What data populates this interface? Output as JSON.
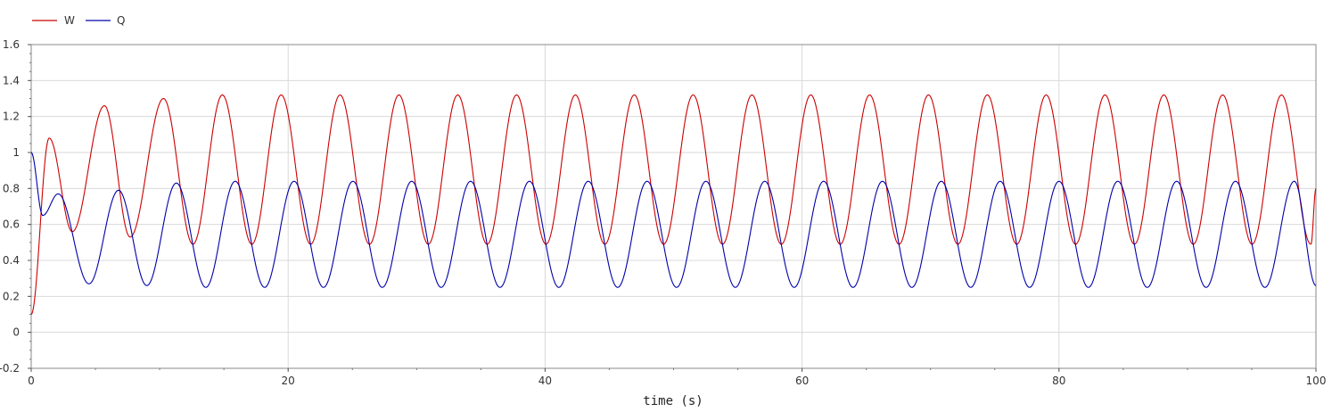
{
  "chart_data": {
    "type": "line",
    "title": "",
    "xlabel": "time (s)",
    "ylabel": "",
    "xlim": [
      0,
      100
    ],
    "ylim": [
      -0.2,
      1.6
    ],
    "xticks": [
      0,
      20,
      40,
      60,
      80,
      100
    ],
    "yticks": [
      -0.2,
      0,
      0.2,
      0.4,
      0.6,
      0.8,
      1,
      1.2,
      1.4,
      1.6
    ],
    "ytick_labels": [
      "-0.2",
      "0",
      "0.2",
      "0.4",
      "0.6",
      "0.8",
      "1",
      "1.2",
      "1.4",
      "1.6"
    ],
    "grid": true,
    "legend_position": "top-left",
    "series": [
      {
        "name": "W",
        "color": "#cc0000",
        "start": [
          0.0,
          0.1
        ],
        "transient_peaks": [
          [
            1.4,
            1.08
          ],
          [
            5.7,
            1.26
          ],
          [
            10.3,
            1.3
          ]
        ],
        "transient_troughs": [
          [
            3.2,
            0.56
          ],
          [
            7.7,
            0.53
          ]
        ],
        "steady_peak": 1.32,
        "steady_trough": 0.49,
        "period": 4.58,
        "end": [
          100,
          0.8
        ]
      },
      {
        "name": "Q",
        "color": "#0000aa",
        "start": [
          0.0,
          1.0
        ],
        "transient_peaks": [
          [
            2.1,
            0.77
          ],
          [
            6.8,
            0.79
          ],
          [
            11.3,
            0.83
          ]
        ],
        "transient_troughs": [
          [
            0.9,
            0.65
          ],
          [
            4.5,
            0.27
          ],
          [
            9.0,
            0.26
          ]
        ],
        "steady_peak": 0.84,
        "steady_trough": 0.25,
        "period": 4.58,
        "end": [
          100,
          0.26
        ]
      }
    ]
  }
}
